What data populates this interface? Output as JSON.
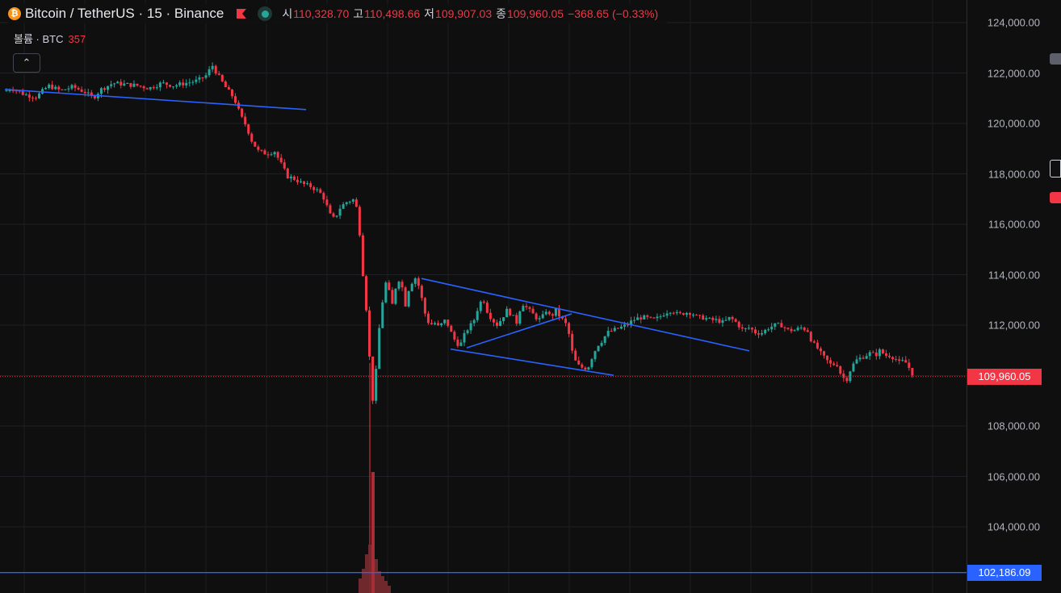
{
  "header": {
    "logo_glyph": "₿",
    "symbol": "Bitcoin / TetherUS · 15 · Binance",
    "open_label": "시",
    "open": "110,328.70",
    "high_label": "고",
    "high": "110,498.66",
    "low_label": "저",
    "low": "109,907.03",
    "close_label": "종",
    "close": "109,960.05",
    "change": "−368.65 (−0.33%)",
    "flag_color": "#f23645",
    "status_color": "#26a69a"
  },
  "volume": {
    "label": "볼륨 · BTC",
    "value": "357"
  },
  "collapse_button": {
    "glyph": "⌃"
  },
  "colors": {
    "up": "#26a69a",
    "down": "#f23645",
    "trendline": "#2962ff",
    "background": "#0f0f0f"
  },
  "price_tags": {
    "last": {
      "text": "109,960.05",
      "color": "#f23645"
    },
    "level": {
      "text": "102,186.09",
      "color": "#2962ff"
    }
  },
  "chart_data": {
    "type": "candlestick",
    "title": "Bitcoin / TetherUS · 15 · Binance",
    "ylim": [
      102000,
      124500
    ],
    "y_ticks": [
      "124,000.00",
      "122,000.00",
      "120,000.00",
      "118,000.00",
      "116,000.00",
      "114,000.00",
      "112,000.00",
      "110,000.00",
      "108,000.00",
      "106,000.00",
      "104,000.00"
    ],
    "y_tick_values": [
      124000,
      122000,
      120000,
      118000,
      116000,
      114000,
      112000,
      110000,
      108000,
      106000,
      104000
    ],
    "grid": true,
    "last_price": 109960.05,
    "horizontal_level": 102186.09,
    "waypoints": [
      [
        0,
        121200
      ],
      [
        15,
        121400
      ],
      [
        30,
        121150
      ],
      [
        45,
        121050
      ],
      [
        60,
        121500
      ],
      [
        75,
        121300
      ],
      [
        90,
        121450
      ],
      [
        105,
        121250
      ],
      [
        115,
        121000
      ],
      [
        125,
        121350
      ],
      [
        140,
        121600
      ],
      [
        155,
        121550
      ],
      [
        170,
        121500
      ],
      [
        185,
        121400
      ],
      [
        200,
        121600
      ],
      [
        215,
        121500
      ],
      [
        230,
        121600
      ],
      [
        245,
        121700
      ],
      [
        255,
        121900
      ],
      [
        263,
        122300
      ],
      [
        270,
        121900
      ],
      [
        280,
        121400
      ],
      [
        290,
        121000
      ],
      [
        298,
        120300
      ],
      [
        305,
        119900
      ],
      [
        312,
        119300
      ],
      [
        320,
        118900
      ],
      [
        330,
        118800
      ],
      [
        340,
        118900
      ],
      [
        348,
        118400
      ],
      [
        356,
        117900
      ],
      [
        365,
        117800
      ],
      [
        375,
        117600
      ],
      [
        385,
        117500
      ],
      [
        395,
        117300
      ],
      [
        402,
        117000
      ],
      [
        408,
        116400
      ],
      [
        414,
        116200
      ],
      [
        422,
        116700
      ],
      [
        430,
        116900
      ],
      [
        440,
        117000
      ],
      [
        446,
        115500
      ],
      [
        450,
        113800
      ],
      [
        454,
        112500
      ],
      [
        458,
        110500
      ],
      [
        462,
        108900
      ],
      [
        466,
        110300
      ],
      [
        470,
        112000
      ],
      [
        474,
        113000
      ],
      [
        478,
        113700
      ],
      [
        482,
        113300
      ],
      [
        486,
        112800
      ],
      [
        490,
        113500
      ],
      [
        494,
        113800
      ],
      [
        498,
        113500
      ],
      [
        502,
        112800
      ],
      [
        506,
        113400
      ],
      [
        510,
        113700
      ],
      [
        515,
        113900
      ],
      [
        520,
        113400
      ],
      [
        526,
        112500
      ],
      [
        532,
        112000
      ],
      [
        538,
        112100
      ],
      [
        544,
        111900
      ],
      [
        550,
        112200
      ],
      [
        555,
        112000
      ],
      [
        560,
        111600
      ],
      [
        565,
        111300
      ],
      [
        570,
        111200
      ],
      [
        575,
        111600
      ],
      [
        580,
        111900
      ],
      [
        586,
        112100
      ],
      [
        592,
        112700
      ],
      [
        598,
        113100
      ],
      [
        604,
        112500
      ],
      [
        610,
        112200
      ],
      [
        616,
        112000
      ],
      [
        622,
        112300
      ],
      [
        628,
        112600
      ],
      [
        634,
        112400
      ],
      [
        640,
        112100
      ],
      [
        646,
        112900
      ],
      [
        652,
        112700
      ],
      [
        658,
        112500
      ],
      [
        664,
        112300
      ],
      [
        670,
        112200
      ],
      [
        676,
        112600
      ],
      [
        682,
        112300
      ],
      [
        688,
        112600
      ],
      [
        694,
        112300
      ],
      [
        700,
        112100
      ],
      [
        705,
        111600
      ],
      [
        710,
        110700
      ],
      [
        716,
        110400
      ],
      [
        722,
        110300
      ],
      [
        728,
        110300
      ],
      [
        734,
        110800
      ],
      [
        740,
        111200
      ],
      [
        746,
        111400
      ],
      [
        752,
        111700
      ],
      [
        760,
        111800
      ],
      [
        768,
        111900
      ],
      [
        776,
        112000
      ],
      [
        784,
        112200
      ],
      [
        792,
        112300
      ],
      [
        800,
        112300
      ],
      [
        808,
        112200
      ],
      [
        816,
        112300
      ],
      [
        824,
        112500
      ],
      [
        832,
        112600
      ],
      [
        840,
        112400
      ],
      [
        848,
        112500
      ],
      [
        856,
        112500
      ],
      [
        864,
        112300
      ],
      [
        872,
        112300
      ],
      [
        880,
        112200
      ],
      [
        888,
        112200
      ],
      [
        896,
        112100
      ],
      [
        904,
        112300
      ],
      [
        912,
        112100
      ],
      [
        920,
        111800
      ],
      [
        928,
        111900
      ],
      [
        936,
        111700
      ],
      [
        944,
        111700
      ],
      [
        952,
        111900
      ],
      [
        960,
        112000
      ],
      [
        968,
        112000
      ],
      [
        976,
        111800
      ],
      [
        984,
        111800
      ],
      [
        992,
        111900
      ],
      [
        1000,
        111800
      ],
      [
        1006,
        111300
      ],
      [
        1012,
        111100
      ],
      [
        1018,
        110800
      ],
      [
        1024,
        110600
      ],
      [
        1030,
        110400
      ],
      [
        1036,
        110500
      ],
      [
        1042,
        110000
      ],
      [
        1048,
        109800
      ],
      [
        1054,
        110300
      ],
      [
        1060,
        110600
      ],
      [
        1066,
        110700
      ],
      [
        1072,
        110800
      ],
      [
        1078,
        110900
      ],
      [
        1084,
        110800
      ],
      [
        1090,
        111000
      ],
      [
        1096,
        110800
      ],
      [
        1102,
        110800
      ],
      [
        1108,
        110700
      ],
      [
        1114,
        110500
      ],
      [
        1120,
        110600
      ],
      [
        1126,
        110300
      ],
      [
        1132,
        109960
      ]
    ],
    "volume_bars": [
      [
        446,
        0.06
      ],
      [
        450,
        0.1
      ],
      [
        454,
        0.16
      ],
      [
        458,
        0.2
      ],
      [
        462,
        0.5
      ],
      [
        466,
        0.14
      ],
      [
        470,
        0.09
      ],
      [
        474,
        0.07
      ],
      [
        478,
        0.05
      ],
      [
        482,
        0.03
      ]
    ],
    "trendlines": [
      {
        "from": [
          6,
          121350
        ],
        "to": [
          379,
          120550
        ]
      },
      {
        "from": [
          522,
          113850
        ],
        "to": [
          928,
          110980
        ]
      },
      {
        "from": [
          558,
          111050
        ],
        "to": [
          760,
          110010
        ]
      },
      {
        "from": [
          578,
          111100
        ],
        "to": [
          708,
          112450
        ]
      }
    ]
  }
}
